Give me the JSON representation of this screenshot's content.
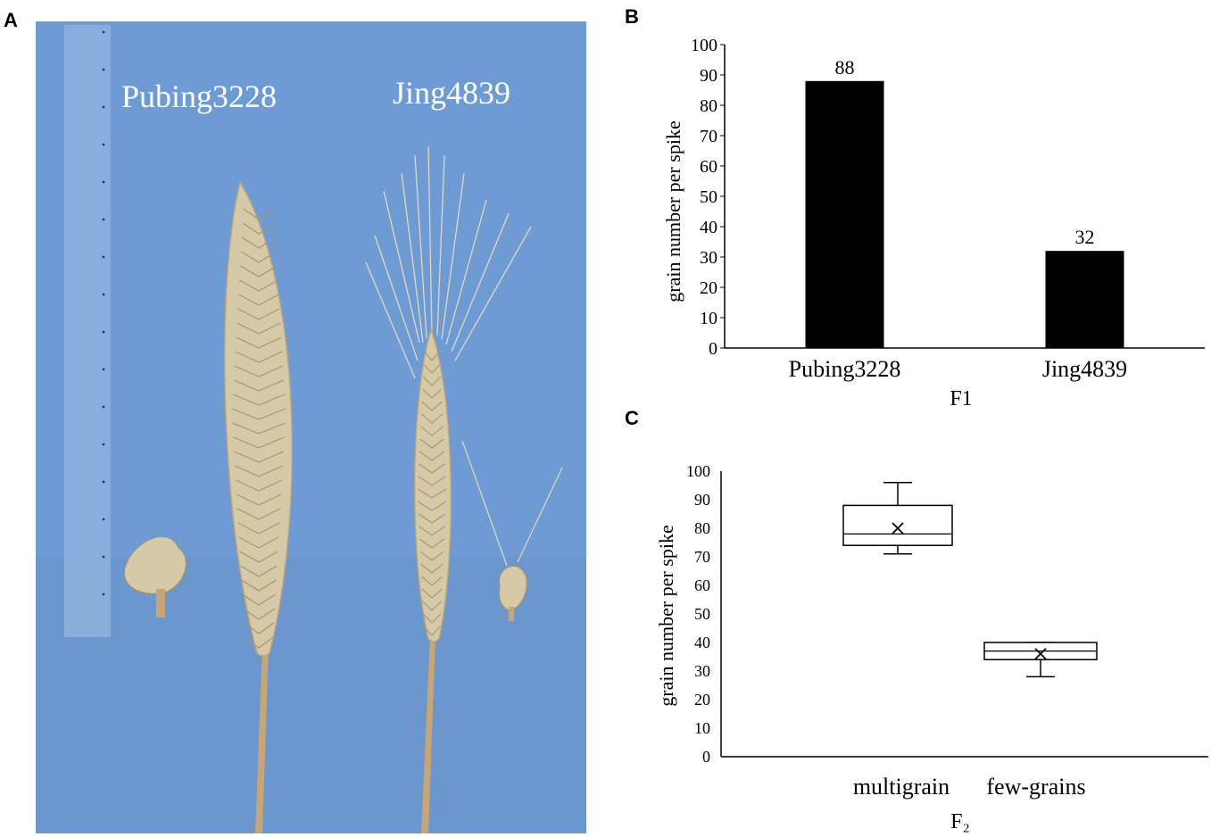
{
  "panel_labels": {
    "a": "A",
    "b": "B",
    "c": "C"
  },
  "photo": {
    "labels": [
      "Pubing3228",
      "Jing4839"
    ],
    "colors": {
      "background": "#6e9bd3",
      "ruler": "#8fb2dc",
      "spike": "#d6c9a8",
      "stem": "#c8a574",
      "text": "#ffffff"
    }
  },
  "chart_data": [
    {
      "type": "bar",
      "categories": [
        "Pubing3228",
        "Jing4839"
      ],
      "values": [
        88,
        32
      ],
      "data_labels": [
        "88",
        "32"
      ],
      "xlabel": "F1",
      "ylabel": "grain number per spike",
      "ylim": [
        0,
        100
      ],
      "yticks": [
        "0",
        "10",
        "20",
        "30",
        "40",
        "50",
        "60",
        "70",
        "80",
        "90",
        "100"
      ],
      "bar_color": "#000000",
      "grid": false
    },
    {
      "type": "box",
      "categories": [
        "multigrain",
        "few-grains"
      ],
      "boxes": [
        {
          "min": 71,
          "q1": 74,
          "median": 78,
          "q3": 88,
          "max": 96,
          "mean": 80
        },
        {
          "min": 28,
          "q1": 34,
          "median": 37,
          "q3": 40,
          "max": 40,
          "mean": 36
        }
      ],
      "xlabel": "F₂",
      "ylabel": "grain number per spike",
      "ylim": [
        0,
        100
      ],
      "yticks": [
        "0",
        "10",
        "20",
        "30",
        "40",
        "50",
        "60",
        "70",
        "80",
        "90",
        "100"
      ],
      "grid": false
    }
  ]
}
